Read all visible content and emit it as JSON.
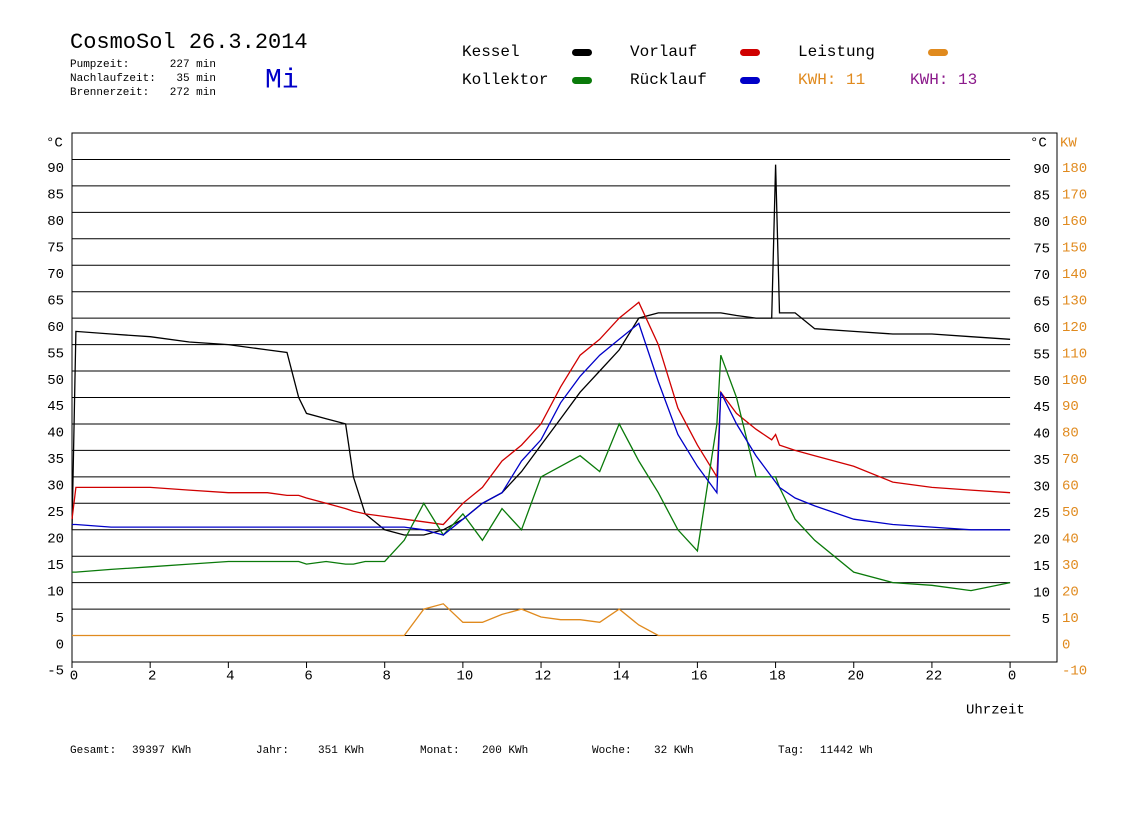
{
  "header": {
    "title": "CosmoSol 26.3.2014",
    "weekday": "Mi",
    "stats": [
      {
        "label": "Pumpzeit:",
        "value": "227 min"
      },
      {
        "label": "Nachlaufzeit:",
        "value": "35 min"
      },
      {
        "label": "Brennerzeit:",
        "value": "272 min"
      }
    ]
  },
  "kwh_labels": [
    {
      "text": "KWH: 11",
      "color": "#e08a1e"
    },
    {
      "text": "KWH: 13",
      "color": "#8b1a8b"
    }
  ],
  "footer": [
    {
      "label": "Gesamt:",
      "value": "39397 KWh"
    },
    {
      "label": "Jahr:",
      "value": "351 KWh"
    },
    {
      "label": "Monat:",
      "value": "200 KWh"
    },
    {
      "label": "Woche:",
      "value": "32 KWh"
    },
    {
      "label": "Tag:",
      "value": "11442 Wh"
    }
  ],
  "chart_data": {
    "type": "line",
    "y_label": "°C",
    "y_right_label": "°C",
    "y2_label": "KW",
    "x_label": "Uhrzeit",
    "x": [
      0,
      0.1,
      1,
      2,
      3,
      4,
      5,
      5.5,
      5.8,
      6,
      6.5,
      7,
      7.2,
      7.5,
      8,
      8.5,
      9,
      9.5,
      10,
      10.5,
      11,
      11.5,
      12,
      12.5,
      13,
      13.5,
      14,
      14.5,
      15,
      15.5,
      16,
      16.5,
      16.6,
      17,
      17.5,
      17.9,
      18,
      18.1,
      18.5,
      19,
      20,
      21,
      22,
      23,
      24
    ],
    "series": [
      {
        "name": "Kessel",
        "color": "#000000",
        "values": [
          20,
          57.5,
          57,
          56.5,
          55.5,
          55,
          54,
          53.5,
          45,
          42,
          41,
          40,
          30,
          23,
          20,
          19,
          19,
          20,
          22,
          25,
          27,
          31,
          36,
          41,
          46,
          50,
          54,
          60,
          61,
          61,
          61,
          61,
          61,
          60.5,
          60,
          60,
          89,
          61,
          61,
          58,
          57.5,
          57,
          57,
          56.5,
          56
        ]
      },
      {
        "name": "Vorlauf",
        "color": "#d00000",
        "values": [
          22,
          28,
          28,
          28,
          27.5,
          27,
          27,
          26.5,
          26.5,
          26,
          25,
          24,
          23.5,
          23,
          22.5,
          22,
          21.5,
          21,
          25,
          28,
          33,
          36,
          40,
          47,
          53,
          56,
          60,
          63,
          55,
          43,
          36,
          30,
          46,
          42,
          39,
          37,
          38,
          36,
          35,
          34,
          32,
          29,
          28,
          27.5,
          27
        ]
      },
      {
        "name": "Leistung",
        "color": "#e08a1e",
        "axis": "y2",
        "values": [
          0,
          0,
          0,
          0,
          0,
          0,
          0,
          0,
          0,
          0,
          0,
          0,
          0,
          0,
          0,
          0,
          10,
          12,
          5,
          5,
          8,
          10,
          7,
          6,
          6,
          5,
          10,
          4,
          0,
          0,
          0,
          0,
          0,
          0,
          0,
          0,
          0,
          0,
          0,
          0,
          0,
          0,
          0,
          0,
          0
        ]
      },
      {
        "name": "Kollektor",
        "color": "#0a7a0a",
        "values": [
          12,
          12,
          12.5,
          13,
          13.5,
          14,
          14,
          14,
          14,
          13.5,
          14,
          13.5,
          13.5,
          14,
          14,
          18,
          25,
          19,
          23,
          18,
          24,
          20,
          30,
          32,
          34,
          31,
          40,
          33,
          27,
          20,
          16,
          40,
          53,
          45,
          30,
          30,
          30,
          28,
          22,
          18,
          12,
          10,
          9.5,
          8.5,
          10
        ]
      },
      {
        "name": "Rücklauf",
        "color": "#0000c8",
        "values": [
          21,
          21,
          20.5,
          20.5,
          20.5,
          20.5,
          20.5,
          20.5,
          20.5,
          20.5,
          20.5,
          20.5,
          20.5,
          20.5,
          20.5,
          20.5,
          20,
          19,
          22,
          25,
          27,
          33,
          37,
          44,
          49,
          53,
          56,
          59,
          48,
          38,
          32,
          27,
          46,
          40,
          34,
          30,
          29,
          28,
          26,
          24.5,
          22,
          21,
          20.5,
          20,
          20
        ]
      }
    ],
    "xlim": [
      0,
      25.2
    ],
    "xticks": [
      0,
      2,
      4,
      6,
      8,
      10,
      12,
      14,
      16,
      18,
      20,
      22,
      {
        "value": 24,
        "label": "0"
      }
    ],
    "ylim": [
      -5,
      95
    ],
    "yticks": [
      -5,
      0,
      5,
      10,
      15,
      20,
      25,
      30,
      35,
      40,
      45,
      50,
      55,
      60,
      65,
      70,
      75,
      80,
      85,
      90
    ],
    "yticks_right": [
      5,
      10,
      15,
      20,
      25,
      30,
      35,
      40,
      45,
      50,
      55,
      60,
      65,
      70,
      75,
      80,
      85,
      90
    ],
    "y2lim": [
      -10,
      190
    ],
    "y2ticks": [
      -10,
      0,
      10,
      20,
      30,
      40,
      50,
      60,
      70,
      80,
      90,
      100,
      110,
      120,
      130,
      140,
      150,
      160,
      170,
      180
    ],
    "grid": true
  }
}
